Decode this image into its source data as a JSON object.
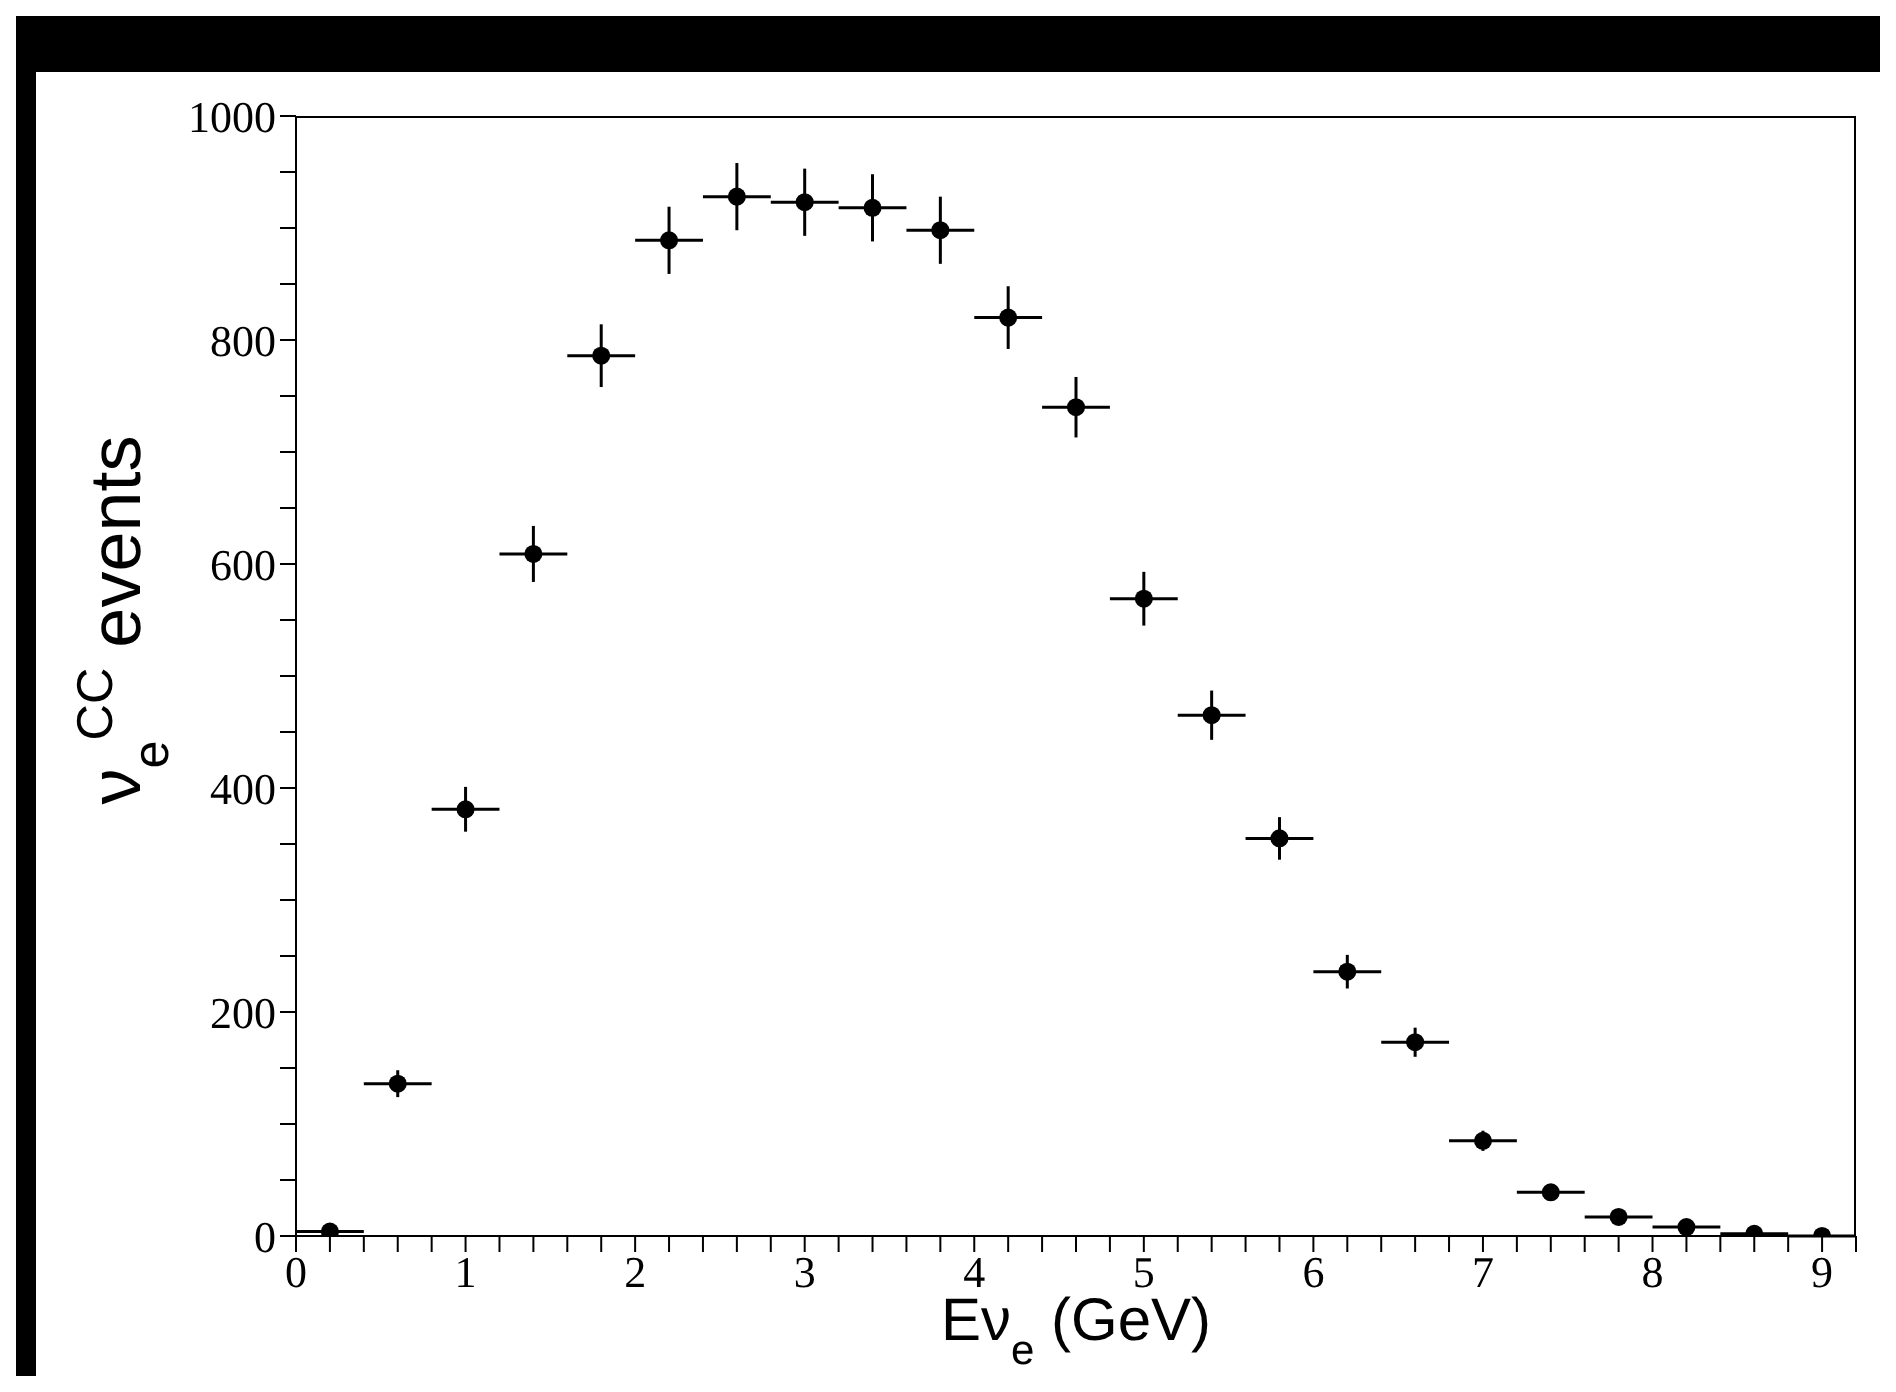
{
  "chart_data": {
    "type": "scatter",
    "xlabel": "Eν$_{e}$ (GeV)",
    "ylabel": "ν$_{e}$$^{CC}$ events",
    "x": [
      0.2,
      0.6,
      1.0,
      1.4,
      1.8,
      2.2,
      2.6,
      3.0,
      3.4,
      3.8,
      4.2,
      4.6,
      5.0,
      5.4,
      5.8,
      6.2,
      6.6,
      7.0,
      7.4,
      7.8,
      8.2,
      8.6,
      9.0
    ],
    "series": [
      {
        "color": "#000000",
        "marker": "circle",
        "values": [
          4,
          136,
          381,
          609,
          786,
          889,
          928,
          923,
          918,
          898,
          820,
          740,
          569,
          465,
          355,
          236,
          173,
          85,
          39,
          17,
          8,
          2,
          0
        ],
        "errors": [
          2,
          12,
          20,
          25,
          28,
          30,
          30,
          30,
          30,
          30,
          28,
          27,
          24,
          22,
          19,
          15,
          13,
          9,
          6,
          4,
          3,
          1,
          0
        ],
        "xerrors": [
          0.2,
          0.2,
          0.2,
          0.2,
          0.2,
          0.2,
          0.2,
          0.2,
          0.2,
          0.2,
          0.2,
          0.2,
          0.2,
          0.2,
          0.2,
          0.2,
          0.2,
          0.2,
          0.2,
          0.2,
          0.2,
          0.2,
          0.2
        ]
      }
    ],
    "xlim": [
      0,
      9.2
    ],
    "xticks": [
      0,
      {
        "value": 0.2,
        "label": null
      },
      {
        "value": 0.4,
        "label": null
      },
      {
        "value": 0.6,
        "label": null
      },
      {
        "value": 0.8,
        "label": null
      },
      1,
      {
        "value": 1.2,
        "label": null
      },
      {
        "value": 1.4,
        "label": null
      },
      {
        "value": 1.6,
        "label": null
      },
      {
        "value": 1.8,
        "label": null
      },
      2,
      {
        "value": 2.2,
        "label": null
      },
      {
        "value": 2.4,
        "label": null
      },
      {
        "value": 2.6,
        "label": null
      },
      {
        "value": 2.8,
        "label": null
      },
      3,
      {
        "value": 3.2,
        "label": null
      },
      {
        "value": 3.4,
        "label": null
      },
      {
        "value": 3.6,
        "label": null
      },
      {
        "value": 3.8,
        "label": null
      },
      4,
      {
        "value": 4.2,
        "label": null
      },
      {
        "value": 4.4,
        "label": null
      },
      {
        "value": 4.6,
        "label": null
      },
      {
        "value": 4.8,
        "label": null
      },
      5,
      {
        "value": 5.2,
        "label": null
      },
      {
        "value": 5.4,
        "label": null
      },
      {
        "value": 5.6,
        "label": null
      },
      {
        "value": 5.8,
        "label": null
      },
      6,
      {
        "value": 6.2,
        "label": null
      },
      {
        "value": 6.4,
        "label": null
      },
      {
        "value": 6.6,
        "label": null
      },
      {
        "value": 6.8,
        "label": null
      },
      7,
      {
        "value": 7.2,
        "label": null
      },
      {
        "value": 7.4,
        "label": null
      },
      {
        "value": 7.6,
        "label": null
      },
      {
        "value": 7.8,
        "label": null
      },
      8,
      {
        "value": 8.2,
        "label": null
      },
      {
        "value": 8.4,
        "label": null
      },
      {
        "value": 8.6,
        "label": null
      },
      {
        "value": 8.8,
        "label": null
      },
      9,
      {
        "value": 9.2,
        "label": null
      }
    ],
    "ylim": [
      0,
      1000
    ],
    "yticks": [
      0,
      {
        "value": 50,
        "label": null
      },
      {
        "value": 100,
        "label": null
      },
      {
        "value": 150,
        "label": null
      },
      200,
      {
        "value": 250,
        "label": null
      },
      {
        "value": 300,
        "label": null
      },
      {
        "value": 350,
        "label": null
      },
      400,
      {
        "value": 450,
        "label": null
      },
      {
        "value": 500,
        "label": null
      },
      {
        "value": 550,
        "label": null
      },
      600,
      {
        "value": 650,
        "label": null
      },
      {
        "value": 700,
        "label": null
      },
      {
        "value": 750,
        "label": null
      },
      800,
      {
        "value": 850,
        "label": null
      },
      {
        "value": 900,
        "label": null
      },
      {
        "value": 950,
        "label": null
      },
      1000
    ],
    "grid": false,
    "legend": false
  }
}
